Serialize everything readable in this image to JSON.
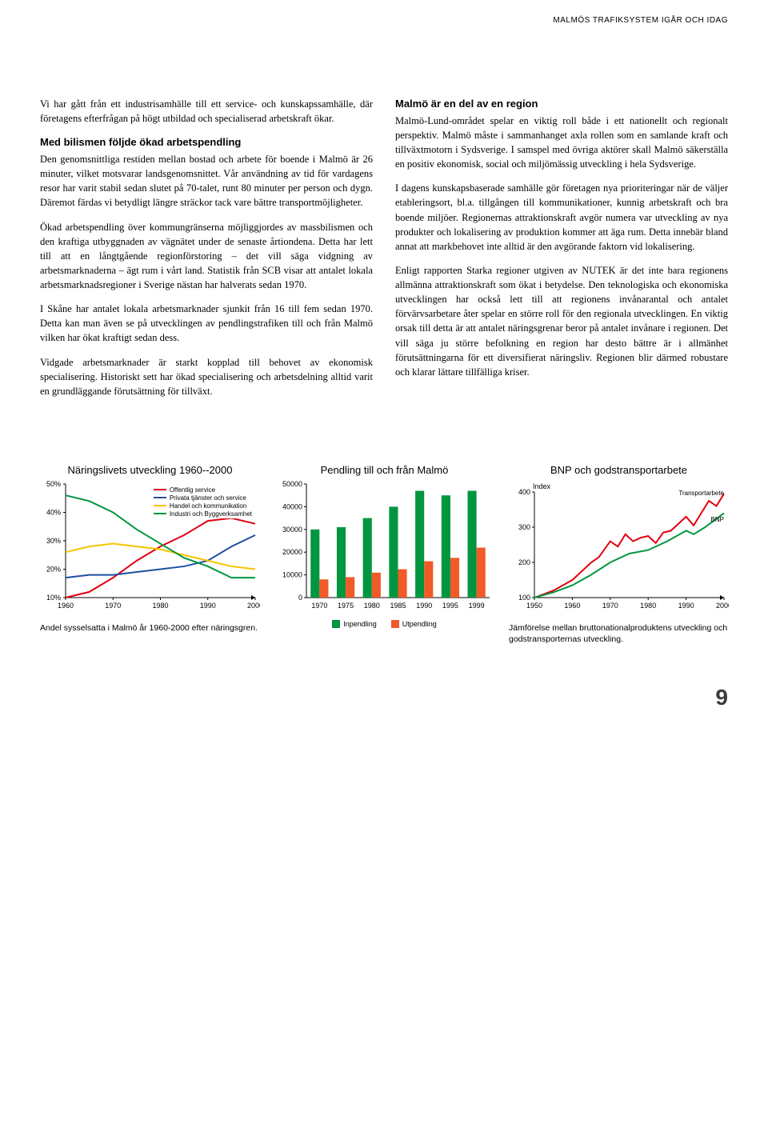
{
  "header": "MALMÖS TRAFIKSYSTEM IGÅR OCH IDAG",
  "page_number": "9",
  "left_col": {
    "p1": "Vi har gått från ett industrisamhälle till ett service- och kunskapssamhälle, där företagens efterfrågan på högt utbildad och specialiserad arbetskraft ökar.",
    "h1": "Med bilismen följde ökad arbetspendling",
    "p2": "Den genomsnittliga restiden mellan bostad och arbete för boende i Malmö är 26 minuter, vilket motsvarar landsgenomsnittet. Vår användning av tid för vardagens resor har varit stabil sedan slutet på 70-talet, runt 80 minuter per person och dygn. Däremot färdas vi betydligt längre sträckor tack vare bättre transportmöjligheter.",
    "p3": "Ökad arbetspendling över kommungränserna möjliggjordes av massbilismen och den kraftiga utbyggnaden av vägnätet under de senaste årtiondena. Detta har lett till att en långtgående regionförstoring – det vill säga vidgning av arbetsmarknaderna – ägt rum i vårt land. Statistik från SCB visar att antalet lokala arbetsmarknadsregioner i Sverige nästan har halverats sedan 1970.",
    "p4": "I Skåne har antalet lokala arbetsmarknader sjunkit från 16 till fem sedan 1970. Detta kan man även se på utvecklingen av pendlingstrafiken till och från Malmö vilken har ökat kraftigt sedan dess.",
    "p5": "Vidgade arbetsmarknader är starkt kopplad till behovet av ekonomisk specialisering. Historiskt sett har ökad specialisering och arbetsdelning alltid varit en grundläggande förutsättning för tillväxt."
  },
  "right_col": {
    "h1": "Malmö är en del av en region",
    "p1": "Malmö-Lund-området spelar en viktig roll både i ett nationellt och regionalt perspektiv. Malmö måste i sammanhanget axla rollen som en samlande kraft och tillväxtmotorn i Sydsverige. I samspel med övriga aktörer skall Malmö säkerställa en positiv ekonomisk, social och miljömässig utveckling i hela Sydsverige.",
    "p2": "I dagens kunskapsbaserade samhälle gör företagen nya prioriteringar när de väljer etableringsort, bl.a. tillgången till kommunikationer, kunnig arbetskraft och bra boende miljöer. Regionernas attraktionskraft avgör numera var utveckling av nya produkter och lokalisering av produktion kommer att äga rum. Detta innebär bland annat att markbehovet inte alltid är den avgörande faktorn vid lokalisering.",
    "p3": "Enligt rapporten Starka regioner utgiven av NUTEK är det inte bara regionens allmänna attraktionskraft som ökat i betydelse. Den teknologiska och ekonomiska utvecklingen har också lett till att regionens invånarantal och antalet förvärvsarbetare åter spelar en större roll för den regionala utvecklingen. En viktig orsak till detta är att antalet näringsgrenar beror på antalet invånare i regionen. Det vill säga ju större befolkning en region har desto bättre är i allmänhet förutsättningarna för ett diversifierat näringsliv. Regionen blir därmed robustare och klarar lättare tillfälliga kriser."
  },
  "chart1": {
    "type": "line",
    "title": "Näringslivets utveckling 1960--2000",
    "caption": "Andel sysselsatta i Malmö år 1960-2000 efter näringsgren.",
    "xlim": [
      1960,
      2000
    ],
    "ylim": [
      10,
      50
    ],
    "ytick_labels": [
      "10%",
      "20%",
      "30%",
      "40%",
      "50%"
    ],
    "xtick_labels": [
      "1960",
      "1970",
      "1980",
      "1990",
      "2000"
    ],
    "grid_color": "#000000",
    "background": "#ffffff",
    "axis_fontsize": 9,
    "series": [
      {
        "name": "Offentlig service",
        "color": "#e3000f",
        "points": [
          [
            1960,
            10
          ],
          [
            1965,
            12
          ],
          [
            1970,
            17
          ],
          [
            1975,
            23
          ],
          [
            1980,
            28
          ],
          [
            1985,
            32
          ],
          [
            1990,
            37
          ],
          [
            1995,
            38
          ],
          [
            2000,
            36
          ]
        ]
      },
      {
        "name": "Privata tjänster och service",
        "color": "#1e4fa0",
        "points": [
          [
            1960,
            17
          ],
          [
            1965,
            18
          ],
          [
            1970,
            18
          ],
          [
            1975,
            19
          ],
          [
            1980,
            20
          ],
          [
            1985,
            21
          ],
          [
            1990,
            23
          ],
          [
            1995,
            28
          ],
          [
            2000,
            32
          ]
        ]
      },
      {
        "name": "Handel och kommunikation",
        "color": "#f7c400",
        "points": [
          [
            1960,
            26
          ],
          [
            1965,
            28
          ],
          [
            1970,
            29
          ],
          [
            1975,
            28
          ],
          [
            1980,
            27
          ],
          [
            1985,
            25
          ],
          [
            1990,
            23
          ],
          [
            1995,
            21
          ],
          [
            2000,
            20
          ]
        ]
      },
      {
        "name": "Industri och Byggverksamhet",
        "color": "#009640",
        "points": [
          [
            1960,
            46
          ],
          [
            1965,
            44
          ],
          [
            1970,
            40
          ],
          [
            1975,
            34
          ],
          [
            1980,
            29
          ],
          [
            1985,
            24
          ],
          [
            1990,
            21
          ],
          [
            1995,
            17
          ],
          [
            2000,
            17
          ]
        ]
      }
    ]
  },
  "chart2": {
    "type": "grouped-bar",
    "title": "Pendling till och från Malmö",
    "xlim": [
      1970,
      1999
    ],
    "ylim": [
      0,
      50000
    ],
    "ytick_labels": [
      "0",
      "10000",
      "20000",
      "30000",
      "40000",
      "50000"
    ],
    "xtick_labels": [
      "1970",
      "1975",
      "1980",
      "1985",
      "1990",
      "1995",
      "1999"
    ],
    "background": "#ffffff",
    "axis_fontsize": 9,
    "bar_width": 0.34,
    "series": [
      {
        "name": "Inpendling",
        "color": "#009640",
        "values": [
          30000,
          31000,
          35000,
          40000,
          47000,
          45000,
          47000
        ]
      },
      {
        "name": "Utpendling",
        "color": "#f15a29",
        "values": [
          8000,
          9000,
          11000,
          12500,
          16000,
          17500,
          22000
        ]
      }
    ],
    "legend_labels": {
      "in": "Inpendling",
      "out": "Utpendling"
    }
  },
  "chart3": {
    "type": "line",
    "title": "BNP och godstransportarbete",
    "caption": "Jämförelse mellan bruttonationalproduktens utveckling och godstransporternas utveckling.",
    "xlim": [
      1950,
      2000
    ],
    "ylim": [
      100,
      400
    ],
    "ytick_labels": [
      "100",
      "200",
      "300",
      "400"
    ],
    "xtick_labels": [
      "1950",
      "1960",
      "1970",
      "1980",
      "1990",
      "2000"
    ],
    "y_axis_title": "Index",
    "background": "#ffffff",
    "axis_fontsize": 9,
    "series": [
      {
        "name": "Transportarbete",
        "color": "#e3000f",
        "points": [
          [
            1950,
            100
          ],
          [
            1955,
            120
          ],
          [
            1960,
            150
          ],
          [
            1965,
            200
          ],
          [
            1967,
            215
          ],
          [
            1970,
            260
          ],
          [
            1972,
            245
          ],
          [
            1974,
            280
          ],
          [
            1976,
            260
          ],
          [
            1978,
            270
          ],
          [
            1980,
            275
          ],
          [
            1982,
            255
          ],
          [
            1984,
            285
          ],
          [
            1986,
            290
          ],
          [
            1988,
            310
          ],
          [
            1990,
            330
          ],
          [
            1992,
            305
          ],
          [
            1994,
            340
          ],
          [
            1996,
            375
          ],
          [
            1998,
            360
          ],
          [
            2000,
            395
          ]
        ]
      },
      {
        "name": "BNP",
        "color": "#009640",
        "points": [
          [
            1950,
            100
          ],
          [
            1955,
            115
          ],
          [
            1960,
            135
          ],
          [
            1965,
            165
          ],
          [
            1970,
            200
          ],
          [
            1975,
            225
          ],
          [
            1980,
            235
          ],
          [
            1985,
            260
          ],
          [
            1990,
            290
          ],
          [
            1992,
            280
          ],
          [
            1995,
            300
          ],
          [
            2000,
            340
          ]
        ]
      }
    ],
    "labels": {
      "transport": "Transportarbete",
      "bnp": "BNP"
    }
  }
}
